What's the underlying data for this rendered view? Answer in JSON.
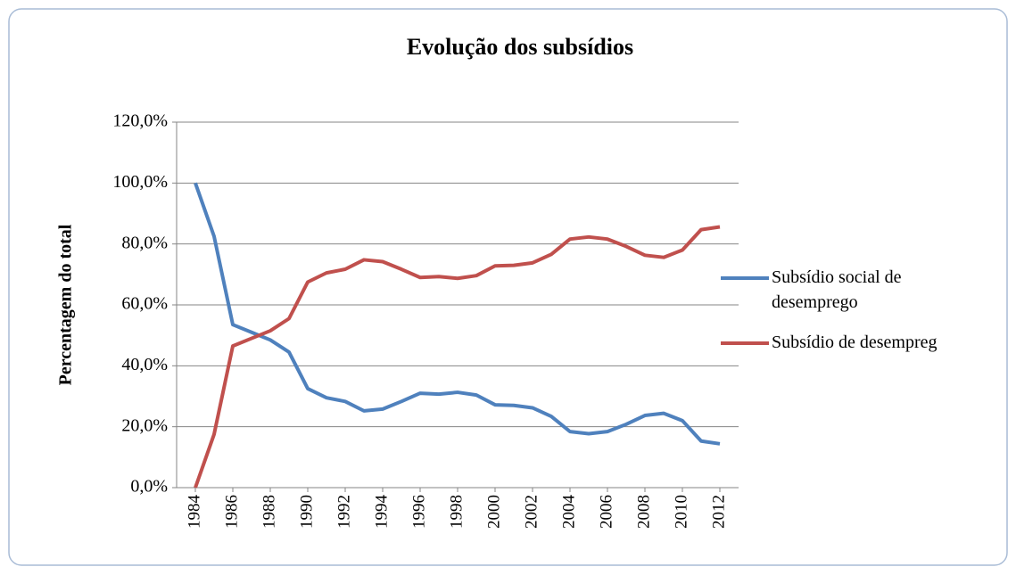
{
  "chart_data": {
    "type": "line",
    "title": "Evolução dos subsídios",
    "y_label": "Percentagem do total",
    "x": [
      1984,
      1985,
      1986,
      1987,
      1988,
      1989,
      1990,
      1991,
      1992,
      1993,
      1994,
      1995,
      1996,
      1997,
      1998,
      1999,
      2000,
      2001,
      2002,
      2003,
      2004,
      2005,
      2006,
      2007,
      2008,
      2009,
      2010,
      2011,
      2012
    ],
    "xlim": [
      1983,
      2013
    ],
    "xticks": [
      1984,
      1986,
      1988,
      1990,
      1992,
      1994,
      1996,
      1998,
      2000,
      2002,
      2004,
      2006,
      2008,
      2010,
      2012
    ],
    "ylim": [
      0,
      120
    ],
    "yticks": [
      {
        "value": 0,
        "label": "0,0%"
      },
      {
        "value": 20,
        "label": "20,0%"
      },
      {
        "value": 40,
        "label": "40,0%"
      },
      {
        "value": 60,
        "label": "60,0%"
      },
      {
        "value": 80,
        "label": "80,0%"
      },
      {
        "value": 100,
        "label": "100,0%"
      },
      {
        "value": 120,
        "label": "120,0%"
      }
    ],
    "grid": true,
    "legend": "right",
    "series": [
      {
        "name": "Subsídio social de desemprego",
        "color": "#4f81bd",
        "values": [
          100,
          82.5,
          53.5,
          51,
          48.5,
          44.5,
          32.5,
          29.5,
          28.3,
          25.2,
          25.8,
          28.3,
          31,
          30.7,
          31.3,
          30.4,
          27.2,
          27,
          26.2,
          23.4,
          18.4,
          17.7,
          18.4,
          20.8,
          23.7,
          24.4,
          22,
          15.3,
          14.4
        ]
      },
      {
        "name": "Subsídio de desemprego",
        "color": "#c0504d",
        "values": [
          0,
          17.5,
          46.5,
          49,
          51.5,
          55.5,
          67.5,
          70.5,
          71.7,
          74.8,
          74.2,
          71.7,
          69,
          69.3,
          68.7,
          69.6,
          72.8,
          73,
          73.8,
          76.6,
          81.6,
          82.3,
          81.6,
          79.2,
          76.3,
          75.6,
          78,
          84.7,
          85.6
        ]
      }
    ]
  }
}
